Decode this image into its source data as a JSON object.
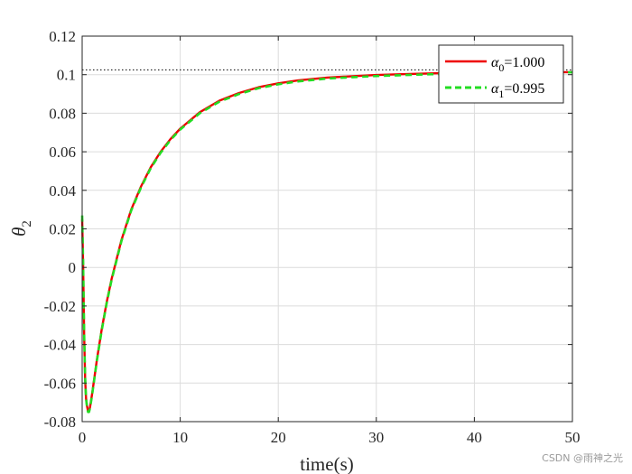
{
  "chart_data": {
    "type": "line",
    "xlabel": "time(s)",
    "ylabel": "θ",
    "ylabel_sub": "2",
    "xlim": [
      0,
      50
    ],
    "ylim": [
      -0.08,
      0.12
    ],
    "xticks": [
      0,
      10,
      20,
      30,
      40,
      50
    ],
    "yticks": [
      -0.08,
      -0.06,
      -0.04,
      -0.02,
      0,
      0.02,
      0.04,
      0.06,
      0.08,
      0.1,
      0.12
    ],
    "grid": true,
    "legend_position": "top-right",
    "reference_line": {
      "y": 0.1025,
      "style": "dotted",
      "color": "#000000"
    },
    "series": [
      {
        "name": "α",
        "name_sub": "0",
        "name_value": "=1.000",
        "color": "#ee0000",
        "style": "solid",
        "x": [
          0,
          0.1,
          0.2,
          0.3,
          0.4,
          0.5,
          0.6,
          0.7,
          0.8,
          1.0,
          1.5,
          2,
          2.5,
          3,
          4,
          5,
          6,
          7,
          8,
          9,
          10,
          12,
          14,
          16,
          18,
          20,
          22,
          25,
          28,
          30,
          33,
          36,
          40,
          45,
          50
        ],
        "y": [
          0.025,
          0.0,
          -0.035,
          -0.058,
          -0.068,
          -0.072,
          -0.0745,
          -0.0745,
          -0.0725,
          -0.066,
          -0.048,
          -0.032,
          -0.018,
          -0.006,
          0.014,
          0.03,
          0.042,
          0.052,
          0.06,
          0.0665,
          0.072,
          0.0805,
          0.0865,
          0.0905,
          0.0935,
          0.0955,
          0.097,
          0.0985,
          0.0993,
          0.0998,
          0.1003,
          0.1007,
          0.101,
          0.1012,
          0.1013
        ]
      },
      {
        "name": "α",
        "name_sub": "1",
        "name_value": "=0.995",
        "color": "#22dd22",
        "style": "dashed",
        "x": [
          0,
          0.1,
          0.2,
          0.3,
          0.4,
          0.5,
          0.6,
          0.7,
          0.8,
          1.0,
          1.5,
          2,
          2.5,
          3,
          4,
          5,
          6,
          7,
          8,
          9,
          10,
          12,
          14,
          16,
          18,
          20,
          22,
          25,
          28,
          30,
          33,
          36,
          40,
          45,
          50
        ],
        "y": [
          0.027,
          0.002,
          -0.034,
          -0.057,
          -0.068,
          -0.0725,
          -0.075,
          -0.075,
          -0.073,
          -0.0665,
          -0.0485,
          -0.0325,
          -0.0185,
          -0.0065,
          0.0135,
          0.0295,
          0.0415,
          0.0515,
          0.0595,
          0.066,
          0.0715,
          0.08,
          0.086,
          0.09,
          0.093,
          0.095,
          0.0965,
          0.098,
          0.0988,
          0.0993,
          0.0998,
          0.1003,
          0.1008,
          0.1011,
          0.1012
        ]
      }
    ]
  },
  "watermark": "CSDN @雨神之光"
}
